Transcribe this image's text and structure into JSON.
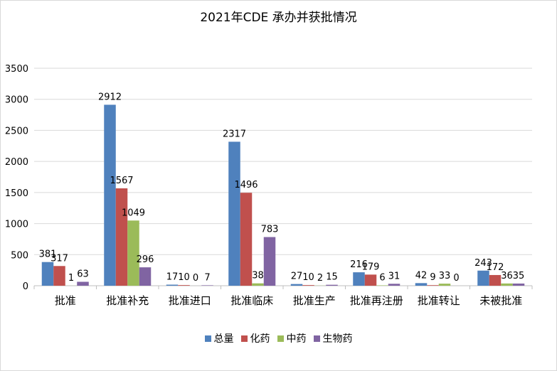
{
  "chart_data": {
    "type": "bar",
    "title": "2021年CDE 承办并获批情况",
    "xlabel": "",
    "ylabel": "",
    "ylim": [
      0,
      3500
    ],
    "yticks": [
      0,
      500,
      1000,
      1500,
      2000,
      2500,
      3000,
      3500
    ],
    "grid": true,
    "legend_position": "bottom",
    "categories": [
      "批准",
      "批准补充",
      "批准进口",
      "批准临床",
      "批准生产",
      "批准再注册",
      "批准转让",
      "未被批准"
    ],
    "series": [
      {
        "name": "总量",
        "color": "#4f81bd",
        "values": [
          381,
          2912,
          17,
          2317,
          27,
          216,
          42,
          243
        ]
      },
      {
        "name": "化药",
        "color": "#c0504d",
        "values": [
          317,
          1567,
          10,
          1496,
          10,
          179,
          9,
          172
        ]
      },
      {
        "name": "中药",
        "color": "#9bbb59",
        "values": [
          1,
          1049,
          0,
          38,
          2,
          6,
          33,
          36
        ]
      },
      {
        "name": "生物药",
        "color": "#8064a2",
        "values": [
          63,
          296,
          7,
          783,
          15,
          31,
          0,
          35
        ]
      }
    ]
  }
}
